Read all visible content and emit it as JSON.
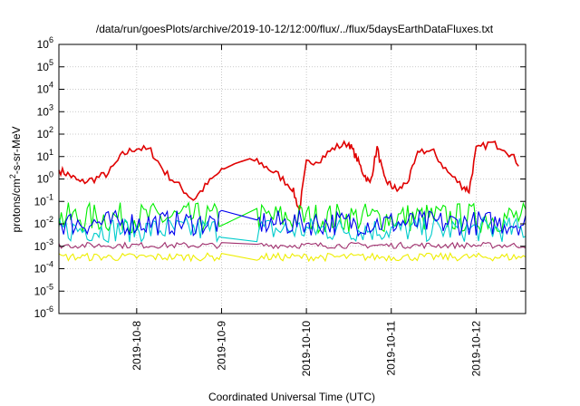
{
  "chart_data": {
    "type": "line",
    "title": "/data/run/goesPlots/archive/2019-10-12/12:00/flux/../flux/5daysEarthDataFluxes.txt",
    "xlabel": "Coordinated Universal Time (UTC)",
    "ylabel": {
      "base": "protons/cm",
      "sup": "2",
      "rest": "-s-sr-MeV"
    },
    "yscale": "log",
    "ylim_exp": [
      -6,
      6
    ],
    "y_ticks": [
      {
        "base": "10",
        "exp": "-6"
      },
      {
        "base": "10",
        "exp": "-5"
      },
      {
        "base": "10",
        "exp": "-4"
      },
      {
        "base": "10",
        "exp": "-3"
      },
      {
        "base": "10",
        "exp": "-2"
      },
      {
        "base": "10",
        "exp": "-1"
      },
      {
        "base": "10",
        "exp": "0"
      },
      {
        "base": "10",
        "exp": "1"
      },
      {
        "base": "10",
        "exp": "2"
      },
      {
        "base": "10",
        "exp": "3"
      },
      {
        "base": "10",
        "exp": "4"
      },
      {
        "base": "10",
        "exp": "5"
      },
      {
        "base": "10",
        "exp": "6"
      }
    ],
    "x_range_days": [
      "2019-10-07",
      "2019-10-12"
    ],
    "x_ticks": [
      "2019-10-8",
      "2019-10-9",
      "2019-10-10",
      "2019-10-11",
      "2019-10-12"
    ],
    "x_start": "2019-10-07T02:00",
    "x_end": "2019-10-12T14:00",
    "grid": true,
    "gap": {
      "from": "2019-10-09T00:00",
      "to": "2019-10-09T10:00"
    },
    "series": [
      {
        "color": "#e00000",
        "points": [
          [
            "2019-10-07T02:00",
            2.5
          ],
          [
            "2019-10-07T05:00",
            1.5
          ],
          [
            "2019-10-07T08:00",
            0.7
          ],
          [
            "2019-10-07T12:00",
            1.0
          ],
          [
            "2019-10-07T16:00",
            1.8
          ],
          [
            "2019-10-07T20:00",
            12
          ],
          [
            "2019-10-08T00:00",
            25
          ],
          [
            "2019-10-08T04:00",
            18
          ],
          [
            "2019-10-08T08:00",
            2
          ],
          [
            "2019-10-08T12:00",
            0.5
          ],
          [
            "2019-10-08T16:00",
            0.12
          ],
          [
            "2019-10-08T20:00",
            0.6
          ],
          [
            "2019-10-09T00:00",
            2.5
          ],
          [
            "2019-10-09T04:00",
            5
          ],
          [
            "2019-10-09T08:00",
            8
          ],
          [
            "2019-10-09T12:00",
            4
          ],
          [
            "2019-10-09T16:00",
            1.5
          ],
          [
            "2019-10-09T20:00",
            0.4
          ],
          [
            "2019-10-09T22:00",
            0.04
          ],
          [
            "2019-10-10T00:00",
            5
          ],
          [
            "2019-10-10T04:00",
            8
          ],
          [
            "2019-10-10T08:00",
            25
          ],
          [
            "2019-10-10T12:00",
            40
          ],
          [
            "2019-10-10T14:00",
            10
          ],
          [
            "2019-10-10T16:00",
            2
          ],
          [
            "2019-10-10T18:00",
            0.6
          ],
          [
            "2019-10-10T20:00",
            25
          ],
          [
            "2019-10-10T22:00",
            1
          ],
          [
            "2019-10-11T00:00",
            0.5
          ],
          [
            "2019-10-11T02:00",
            0.3
          ],
          [
            "2019-10-11T05:00",
            1
          ],
          [
            "2019-10-11T08:00",
            20
          ],
          [
            "2019-10-11T12:00",
            15
          ],
          [
            "2019-10-11T16:00",
            2
          ],
          [
            "2019-10-11T20:00",
            0.5
          ],
          [
            "2019-10-11T22:00",
            0.3
          ],
          [
            "2019-10-12T00:00",
            20
          ],
          [
            "2019-10-12T04:00",
            40
          ],
          [
            "2019-10-12T08:00",
            25
          ],
          [
            "2019-10-12T12:00",
            5
          ],
          [
            "2019-10-12T16:00",
            1
          ],
          [
            "2019-10-12T20:00",
            0.6
          ],
          [
            "2019-10-12T22:00",
            2
          ],
          [
            "2019-10-13T00:00",
            3
          ]
        ]
      },
      {
        "color": "#00ee00",
        "band": [
          0.004,
          0.09
        ]
      },
      {
        "color": "#00cccc",
        "band": [
          0.0015,
          0.02
        ]
      },
      {
        "color": "#0000ee",
        "band": [
          0.003,
          0.04
        ]
      },
      {
        "color": "#a0306e",
        "band": [
          0.0008,
          0.0015
        ]
      },
      {
        "color": "#eeee00",
        "band": [
          0.00022,
          0.0005
        ]
      }
    ]
  }
}
